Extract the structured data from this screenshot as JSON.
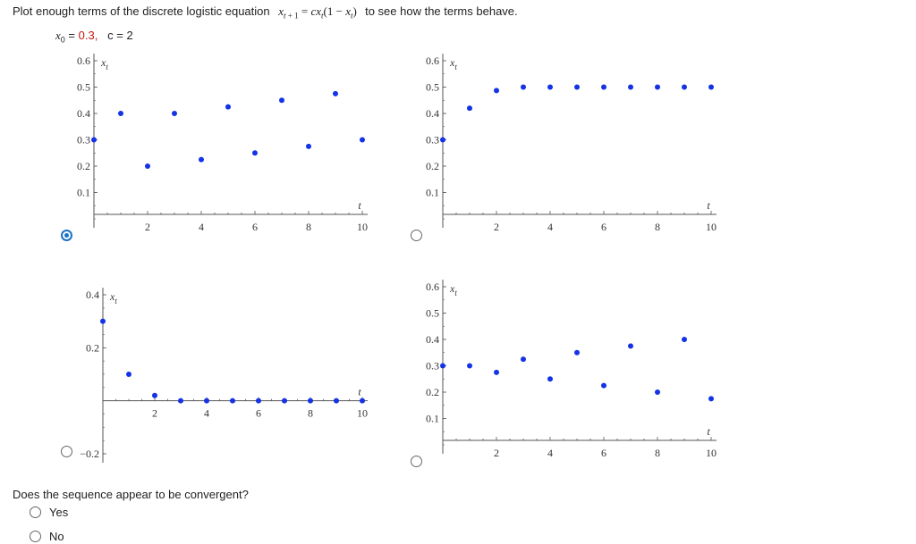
{
  "prompt": {
    "lead": "Plot enough terms of the discrete logistic equation",
    "equation": "xt + 1 = cxt(1 − xt)",
    "tail": "to see how the terms behave."
  },
  "params": {
    "x0_label": "x0 =",
    "x0_value": "0.3,",
    "c_label": "c = 2"
  },
  "options": [
    {
      "selected": true
    },
    {
      "selected": false
    },
    {
      "selected": false
    },
    {
      "selected": false
    }
  ],
  "chart_data": [
    {
      "type": "scatter",
      "ylabel": "xt",
      "xlabel": "t",
      "xlim": [
        0,
        10
      ],
      "ylim": [
        0,
        0.6
      ],
      "xticks": [
        "2",
        "4",
        "6",
        "8",
        "10"
      ],
      "yticks": [
        "0.1",
        "0.2",
        "0.3",
        "0.4",
        "0.5",
        "0.6"
      ],
      "color": "#1432e6",
      "x": [
        0,
        1,
        2,
        3,
        4,
        5,
        6,
        7,
        8,
        9,
        10
      ],
      "y": [
        0.3,
        0.4,
        0.2,
        0.4,
        0.225,
        0.425,
        0.25,
        0.45,
        0.275,
        0.475,
        0.3
      ]
    },
    {
      "type": "scatter",
      "ylabel": "xt",
      "xlabel": "t",
      "xlim": [
        0,
        10
      ],
      "ylim": [
        0,
        0.6
      ],
      "xticks": [
        "2",
        "4",
        "6",
        "8",
        "10"
      ],
      "yticks": [
        "0.1",
        "0.2",
        "0.3",
        "0.4",
        "0.5",
        "0.6"
      ],
      "color": "#1432e6",
      "x": [
        0,
        1,
        2,
        3,
        4,
        5,
        6,
        7,
        8,
        9,
        10
      ],
      "y": [
        0.3,
        0.42,
        0.487,
        0.5,
        0.5,
        0.5,
        0.5,
        0.5,
        0.5,
        0.5,
        0.5
      ]
    },
    {
      "type": "scatter",
      "ylabel": "xt",
      "xlabel": "t",
      "xlim": [
        0,
        10
      ],
      "ylim": [
        -0.2,
        0.4
      ],
      "xticks": [
        "2",
        "4",
        "6",
        "8",
        "10"
      ],
      "yticks": [
        "-0.2",
        "0.2",
        "0.4"
      ],
      "color": "#1432e6",
      "x": [
        0,
        1,
        2,
        3,
        4,
        5,
        6,
        7,
        8,
        9,
        10
      ],
      "y": [
        0.3,
        0.1,
        0.02,
        0.0,
        0.0,
        0.0,
        0.0,
        0.0,
        0.0,
        0.0,
        0.0
      ]
    },
    {
      "type": "scatter",
      "ylabel": "xt",
      "xlabel": "t",
      "xlim": [
        0,
        10
      ],
      "ylim": [
        0,
        0.6
      ],
      "xticks": [
        "2",
        "4",
        "6",
        "8",
        "10"
      ],
      "yticks": [
        "0.1",
        "0.2",
        "0.3",
        "0.4",
        "0.5",
        "0.6"
      ],
      "color": "#1432e6",
      "x": [
        0,
        1,
        2,
        3,
        4,
        5,
        6,
        7,
        8,
        9,
        10
      ],
      "y": [
        0.3,
        0.3,
        0.275,
        0.325,
        0.25,
        0.35,
        0.225,
        0.375,
        0.2,
        0.4,
        0.175
      ]
    }
  ],
  "question": "Does the sequence appear to be convergent?",
  "answers": [
    {
      "label": "Yes",
      "selected": false
    },
    {
      "label": "No",
      "selected": false
    }
  ]
}
